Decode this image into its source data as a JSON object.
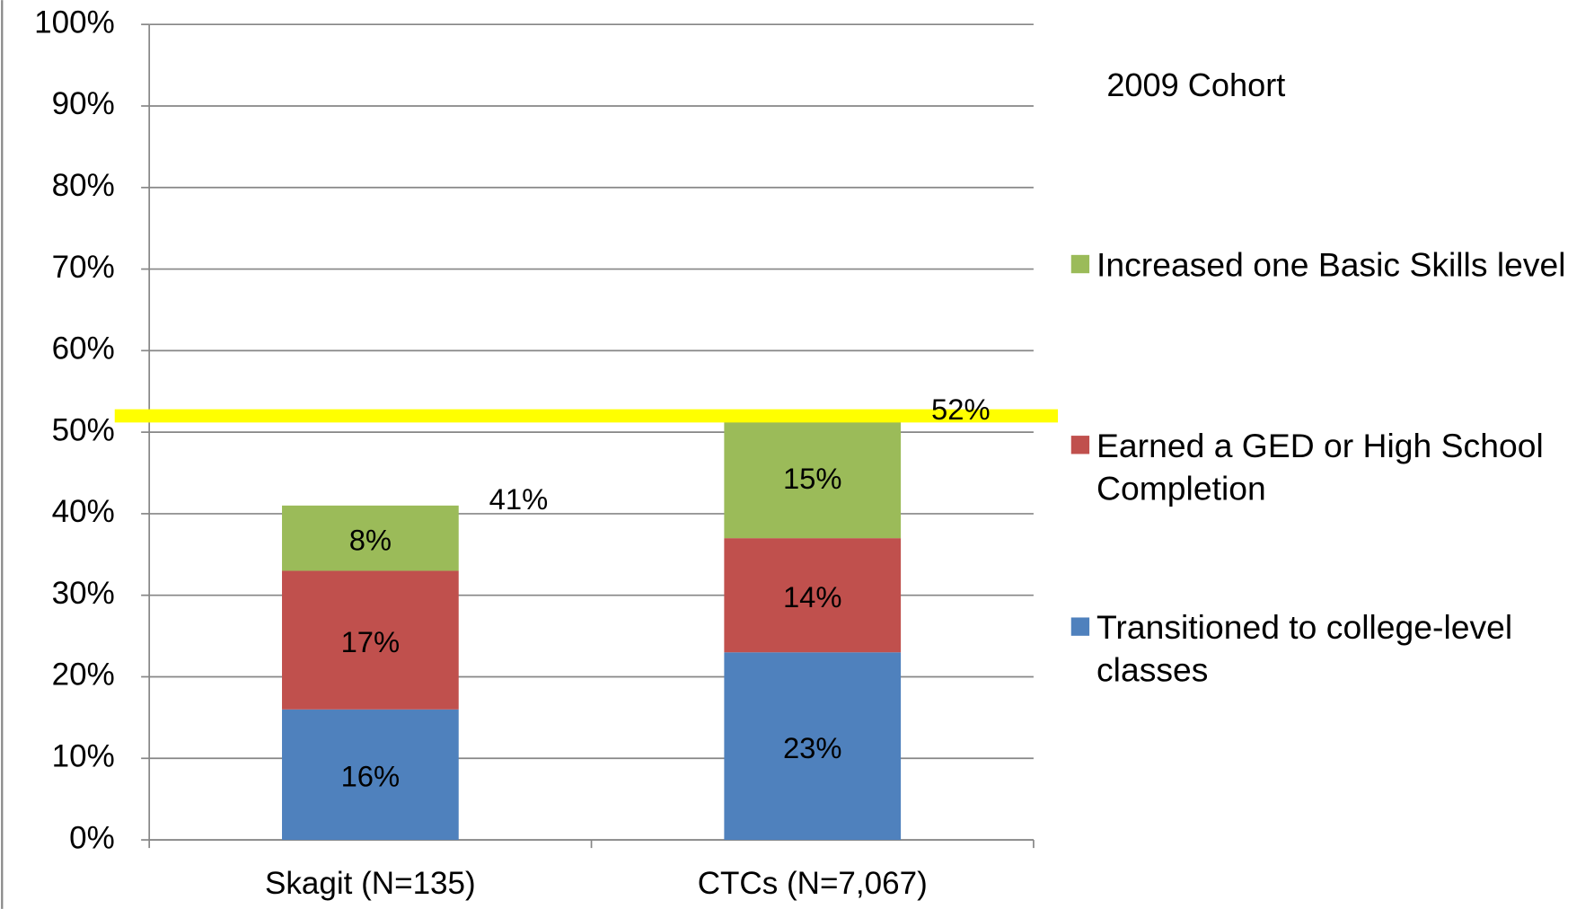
{
  "chart_data": {
    "type": "stacked_bar",
    "annotation": "2009 Cohort",
    "categories": [
      "Skagit (N=135)",
      "CTCs (N=7,067)"
    ],
    "series": [
      {
        "name": "Transitioned to college-level classes",
        "color": "#4f81bd",
        "values": [
          16,
          23
        ],
        "value_labels": [
          "16%",
          "23%"
        ]
      },
      {
        "name": "Earned a GED or High School Completion",
        "color": "#c0504d",
        "values": [
          17,
          14
        ],
        "value_labels": [
          "17%",
          "14%"
        ]
      },
      {
        "name": "Increased one Basic Skills level",
        "color": "#9bbb59",
        "values": [
          8,
          15
        ],
        "value_labels": [
          "8%",
          "15%"
        ]
      }
    ],
    "totals": [
      41,
      52
    ],
    "total_labels": [
      "41%",
      "52%"
    ],
    "reference_line": {
      "value": 52,
      "color": "#ffff00"
    },
    "ylim": [
      0,
      100
    ],
    "yticks": [
      {
        "value": 0,
        "label": "0%"
      },
      {
        "value": 10,
        "label": "10%"
      },
      {
        "value": 20,
        "label": "20%"
      },
      {
        "value": 30,
        "label": "30%"
      },
      {
        "value": 40,
        "label": "40%"
      },
      {
        "value": 50,
        "label": "50%"
      },
      {
        "value": 60,
        "label": "60%"
      },
      {
        "value": 70,
        "label": "70%"
      },
      {
        "value": 80,
        "label": "80%"
      },
      {
        "value": 90,
        "label": "90%"
      },
      {
        "value": 100,
        "label": "100%"
      }
    ],
    "grid": true,
    "legend": "right"
  }
}
